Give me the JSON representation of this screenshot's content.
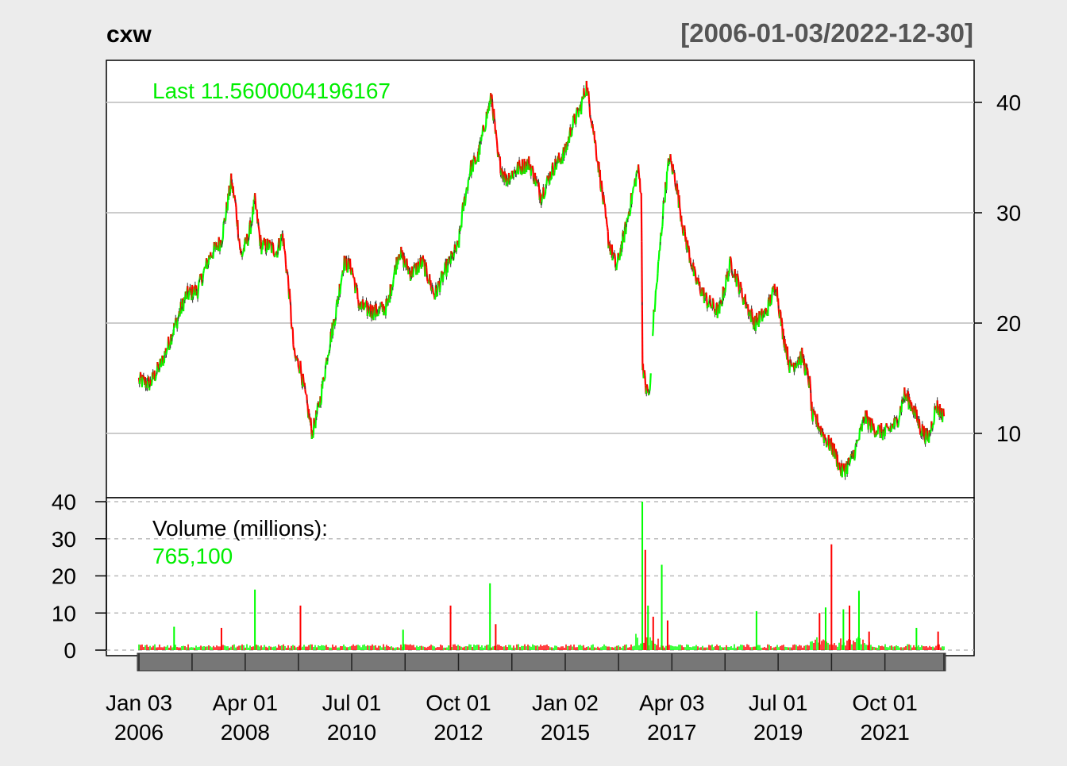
{
  "header": {
    "symbol": "cxw",
    "date_range": "[2006-01-03/2022-12-30]"
  },
  "price_panel": {
    "last_label": "Last 11.5600004196167"
  },
  "volume_panel": {
    "label": "Volume (millions):",
    "value": "765,100"
  },
  "colors": {
    "background": "#ececec",
    "plot_bg": "#ffffff",
    "up": "#00ff00",
    "down": "#ff0000",
    "grid": "#cccccc",
    "last_text": "#00ee00",
    "bars": "#777777"
  },
  "chart_data": [
    {
      "type": "line",
      "title": "cxw",
      "subtitle": "[2006-01-03/2022-12-30]",
      "x_range": [
        "2006-01-03",
        "2022-12-30"
      ],
      "ylim": [
        5,
        43
      ],
      "yticks": [
        10,
        20,
        30,
        40
      ],
      "grid": true,
      "series": [
        {
          "values": [
            [
              "2006-01-03",
              14.8
            ],
            [
              "2006-04-01",
              14.5
            ],
            [
              "2006-07-01",
              16.5
            ],
            [
              "2006-10-01",
              19.5
            ],
            [
              "2007-01-01",
              22.5
            ],
            [
              "2007-04-01",
              23.0
            ],
            [
              "2007-07-01",
              26.0
            ],
            [
              "2007-10-01",
              27.5
            ],
            [
              "2007-12-15",
              32.8
            ],
            [
              "2008-01-15",
              31.0
            ],
            [
              "2008-03-01",
              26.0
            ],
            [
              "2008-05-01",
              28.0
            ],
            [
              "2008-06-15",
              31.0
            ],
            [
              "2008-08-01",
              27.0
            ],
            [
              "2008-10-01",
              27.0
            ],
            [
              "2008-12-01",
              26.5
            ],
            [
              "2009-01-15",
              28.0
            ],
            [
              "2009-03-01",
              23.5
            ],
            [
              "2009-04-15",
              17.0
            ],
            [
              "2009-06-01",
              16.0
            ],
            [
              "2009-07-15",
              13.0
            ],
            [
              "2009-09-01",
              10.0
            ],
            [
              "2009-11-01",
              13.0
            ],
            [
              "2010-01-01",
              17.5
            ],
            [
              "2010-03-01",
              21.0
            ],
            [
              "2010-05-01",
              25.5
            ],
            [
              "2010-07-01",
              25.0
            ],
            [
              "2010-09-01",
              21.5
            ],
            [
              "2011-01-01",
              21.0
            ],
            [
              "2011-04-01",
              21.5
            ],
            [
              "2011-07-01",
              26.5
            ],
            [
              "2011-10-01",
              24.5
            ],
            [
              "2012-01-01",
              25.5
            ],
            [
              "2012-04-01",
              22.5
            ],
            [
              "2012-07-01",
              25.0
            ],
            [
              "2012-10-01",
              27.0
            ],
            [
              "2012-11-01",
              30.0
            ],
            [
              "2013-01-01",
              34.0
            ],
            [
              "2013-03-01",
              35.0
            ],
            [
              "2013-05-01",
              38.5
            ],
            [
              "2013-06-15",
              40.5
            ],
            [
              "2013-08-01",
              35.0
            ],
            [
              "2013-10-01",
              33.0
            ],
            [
              "2014-01-01",
              34.0
            ],
            [
              "2014-04-01",
              34.5
            ],
            [
              "2014-07-01",
              31.5
            ],
            [
              "2014-10-01",
              34.0
            ],
            [
              "2015-01-01",
              35.5
            ],
            [
              "2015-03-01",
              38.0
            ],
            [
              "2015-05-01",
              39.5
            ],
            [
              "2015-06-15",
              41.5
            ],
            [
              "2015-08-01",
              38.0
            ],
            [
              "2015-10-01",
              33.0
            ],
            [
              "2015-12-01",
              27.5
            ],
            [
              "2016-02-01",
              25.0
            ],
            [
              "2016-04-01",
              28.0
            ],
            [
              "2016-06-01",
              31.5
            ],
            [
              "2016-07-15",
              34.0
            ],
            [
              "2016-08-10",
              32.0
            ],
            [
              "2016-08-20",
              16.5
            ],
            [
              "2016-09-15",
              14.0
            ],
            [
              "2016-10-15",
              13.5
            ],
            [
              "2016-11-10",
              20.0
            ],
            [
              "2016-12-15",
              24.5
            ],
            [
              "2017-02-01",
              31.0
            ],
            [
              "2017-03-15",
              35.0
            ],
            [
              "2017-05-01",
              33.0
            ],
            [
              "2017-07-01",
              28.5
            ],
            [
              "2017-10-01",
              24.0
            ],
            [
              "2018-01-01",
              22.0
            ],
            [
              "2018-04-01",
              21.0
            ],
            [
              "2018-07-01",
              25.5
            ],
            [
              "2018-10-01",
              22.5
            ],
            [
              "2019-01-01",
              20.0
            ],
            [
              "2019-04-01",
              21.0
            ],
            [
              "2019-06-15",
              23.5
            ],
            [
              "2019-08-01",
              19.5
            ],
            [
              "2019-10-01",
              16.0
            ],
            [
              "2020-01-01",
              17.0
            ],
            [
              "2020-03-01",
              14.5
            ],
            [
              "2020-03-20",
              11.5
            ],
            [
              "2020-05-01",
              11.0
            ],
            [
              "2020-07-01",
              9.5
            ],
            [
              "2020-09-01",
              8.5
            ],
            [
              "2020-11-01",
              6.5
            ],
            [
              "2021-01-15",
              7.5
            ],
            [
              "2021-03-01",
              9.0
            ],
            [
              "2021-05-01",
              11.5
            ],
            [
              "2021-07-01",
              10.5
            ],
            [
              "2021-10-01",
              10.0
            ],
            [
              "2022-01-01",
              11.0
            ],
            [
              "2022-03-01",
              13.5
            ],
            [
              "2022-05-01",
              12.5
            ],
            [
              "2022-07-01",
              10.5
            ],
            [
              "2022-09-01",
              9.5
            ],
            [
              "2022-11-01",
              12.5
            ],
            [
              "2022-12-30",
              11.56
            ]
          ]
        }
      ]
    },
    {
      "type": "bar",
      "title": "Volume (millions):",
      "ylim": [
        0,
        42
      ],
      "yticks": [
        0,
        10,
        20,
        30,
        40
      ],
      "grid": true,
      "xticks": [
        {
          "date": "2006-01-03",
          "line1": "Jan 03",
          "line2": "2006"
        },
        {
          "date": "2008-04-01",
          "line1": "Apr 01",
          "line2": "2008"
        },
        {
          "date": "2010-07-01",
          "line1": "Jul 01",
          "line2": "2010"
        },
        {
          "date": "2012-10-01",
          "line1": "Oct 01",
          "line2": "2012"
        },
        {
          "date": "2015-01-02",
          "line1": "Jan 02",
          "line2": "2015"
        },
        {
          "date": "2017-04-03",
          "line1": "Apr 03",
          "line2": "2017"
        },
        {
          "date": "2019-07-01",
          "line1": "Jul 01",
          "line2": "2019"
        },
        {
          "date": "2021-10-01",
          "line1": "Oct 01",
          "line2": "2021"
        }
      ],
      "series": [
        {
          "values": [
            [
              "2006-10-01",
              6.3
            ],
            [
              "2007-10-01",
              6.0
            ],
            [
              "2008-06-15",
              16.3
            ],
            [
              "2009-06-01",
              12.0
            ],
            [
              "2011-08-01",
              5.5
            ],
            [
              "2012-08-01",
              12.0
            ],
            [
              "2013-06-01",
              18.0
            ],
            [
              "2013-07-15",
              7.0
            ],
            [
              "2016-08-18",
              40.0
            ],
            [
              "2016-09-10",
              27.0
            ],
            [
              "2016-10-01",
              12.0
            ],
            [
              "2016-11-10",
              9.0
            ],
            [
              "2017-01-15",
              23.0
            ],
            [
              "2017-03-01",
              8.0
            ],
            [
              "2019-01-15",
              10.5
            ],
            [
              "2020-05-15",
              10.0
            ],
            [
              "2020-07-01",
              11.5
            ],
            [
              "2020-08-15",
              28.5
            ],
            [
              "2020-11-15",
              11.0
            ],
            [
              "2021-01-01",
              12.0
            ],
            [
              "2021-03-15",
              16.0
            ],
            [
              "2021-06-01",
              5.0
            ],
            [
              "2022-06-01",
              6.0
            ],
            [
              "2022-11-15",
              5.0
            ]
          ]
        }
      ]
    }
  ]
}
